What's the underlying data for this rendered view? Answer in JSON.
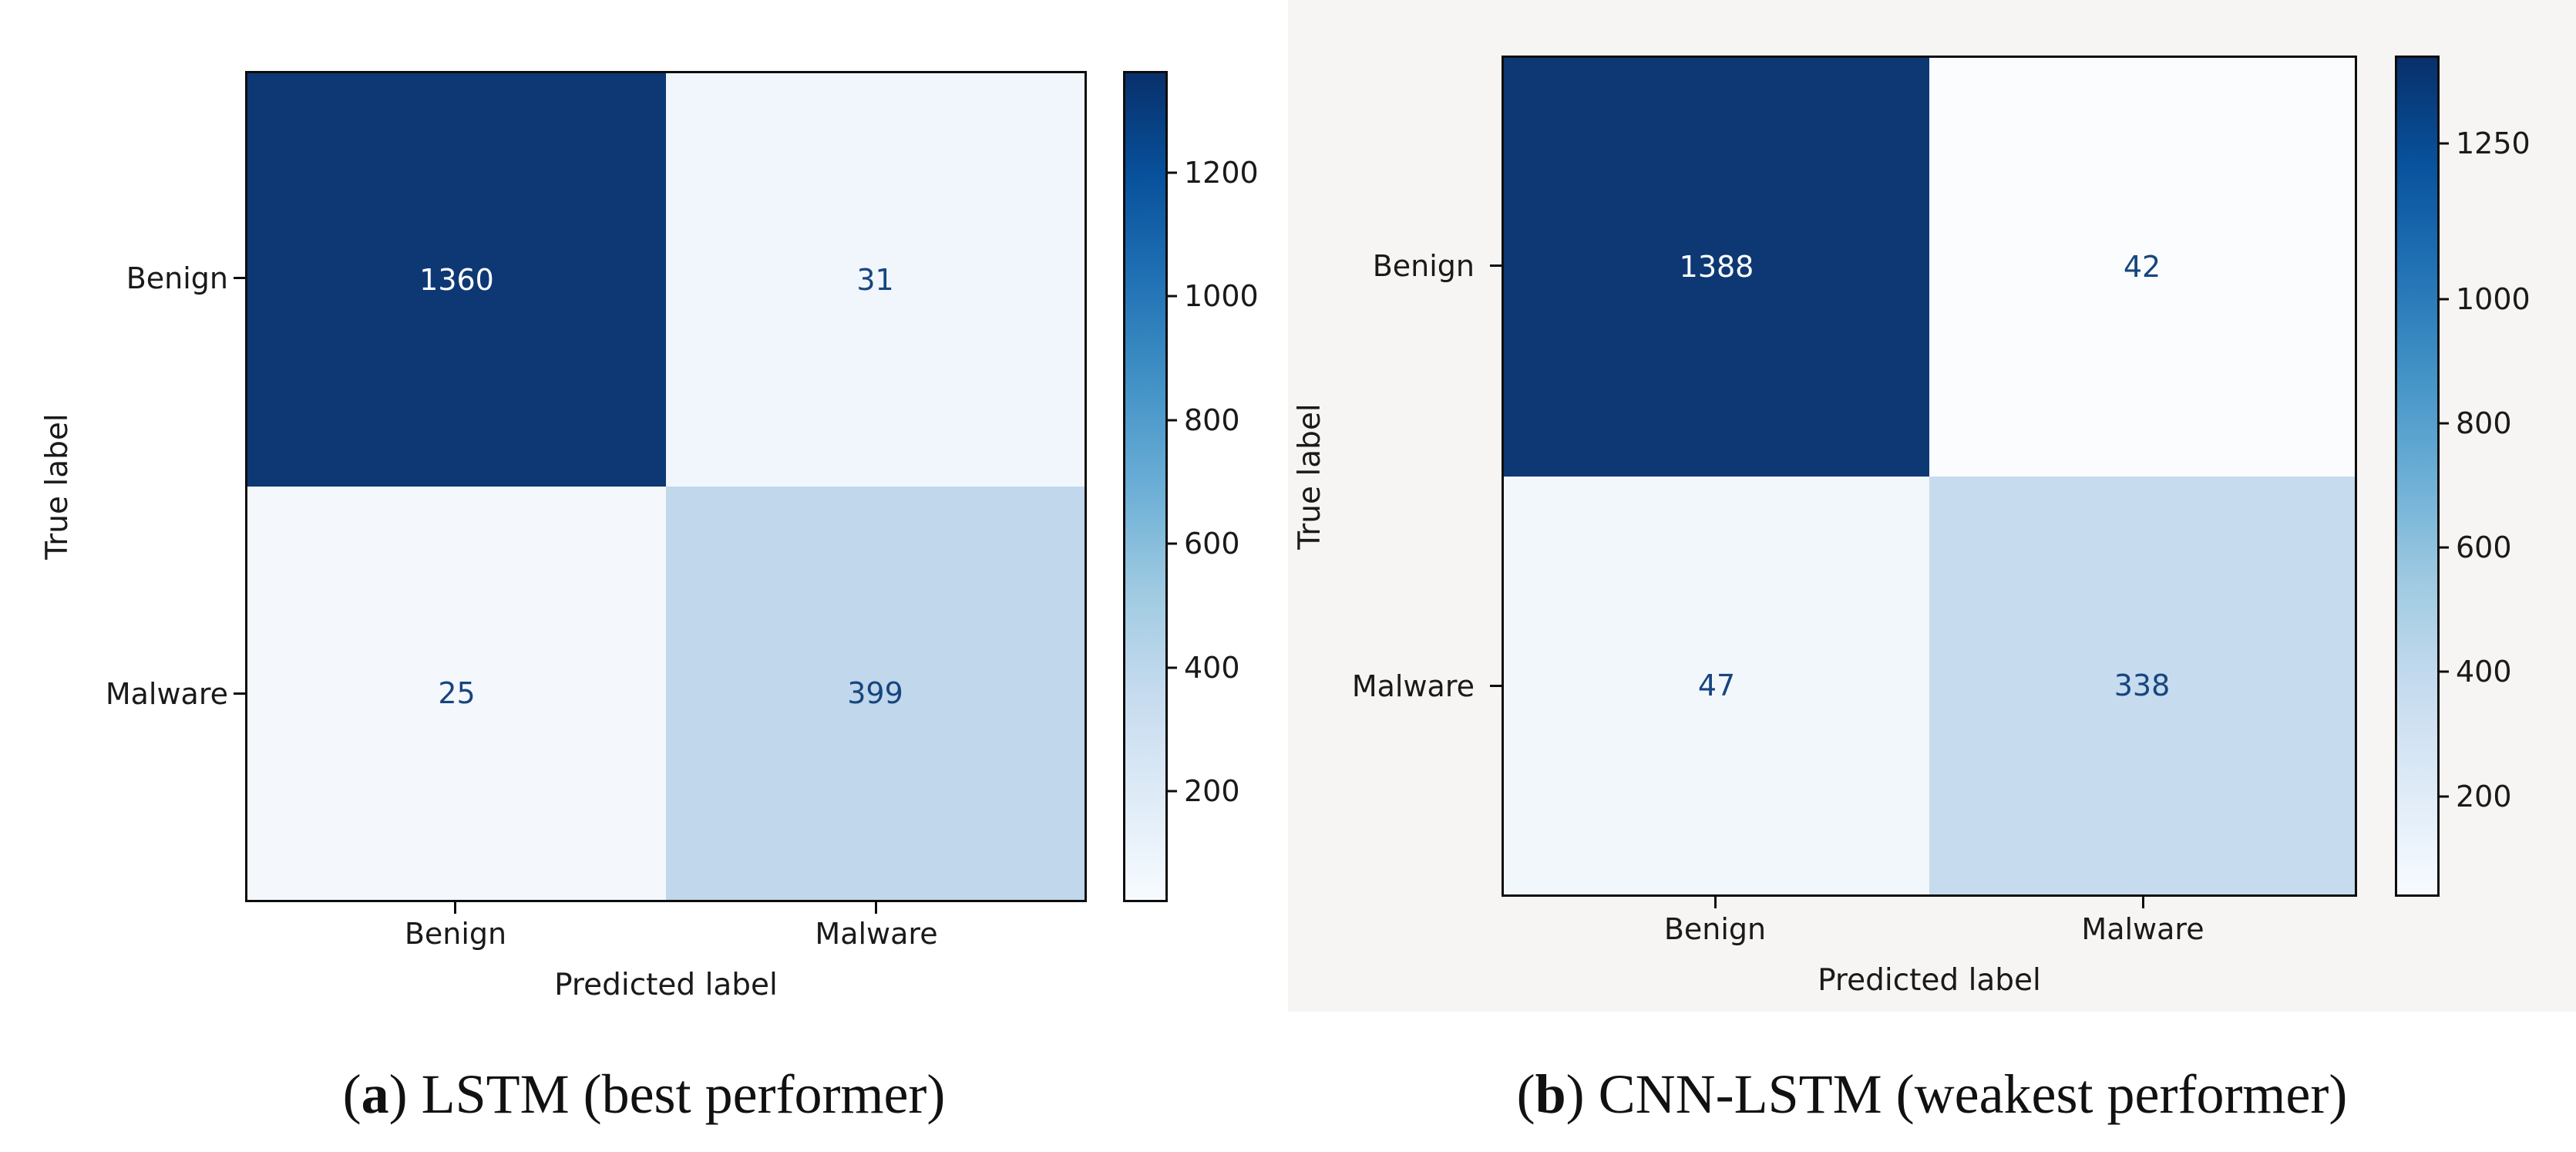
{
  "figure": {
    "panels": [
      {
        "id": "a",
        "y_axis_label": "True label",
        "x_axis_label": "Predicted label",
        "y_tick_labels": [
          "Benign",
          "Malware"
        ],
        "x_tick_labels": [
          "Benign",
          "Malware"
        ],
        "cells": [
          {
            "value": "1360",
            "bg": "#0d3874",
            "fg": "#ffffff"
          },
          {
            "value": "31",
            "bg": "#f1f6fc",
            "fg": "#17467e"
          },
          {
            "value": "25",
            "bg": "#f4f8fd",
            "fg": "#17467e"
          },
          {
            "value": "399",
            "bg": "#c0d7ec",
            "fg": "#17467e"
          }
        ],
        "colorbar": {
          "vmin": 25,
          "vmax": 1360,
          "ticks": [
            1200,
            1000,
            800,
            600,
            400,
            200
          ]
        },
        "caption": {
          "open": "(",
          "letter": "a",
          "rest": ") LSTM (best performer)"
        }
      },
      {
        "id": "b",
        "y_axis_label": "True label",
        "x_axis_label": "Predicted label",
        "y_tick_labels": [
          "Benign",
          "Malware"
        ],
        "x_tick_labels": [
          "Benign",
          "Malware"
        ],
        "cells": [
          {
            "value": "1388",
            "bg": "#0d3874",
            "fg": "#ffffff"
          },
          {
            "value": "42",
            "bg": "#fafcfe",
            "fg": "#17467e"
          },
          {
            "value": "47",
            "bg": "#f2f7fb",
            "fg": "#17467e"
          },
          {
            "value": "338",
            "bg": "#c6dbee",
            "fg": "#17467e"
          }
        ],
        "colorbar": {
          "vmin": 42,
          "vmax": 1388,
          "ticks": [
            1250,
            1000,
            800,
            600,
            400,
            200
          ]
        },
        "caption": {
          "open": "(",
          "letter": "b",
          "rest": ") CNN-LSTM (weakest performer)"
        }
      }
    ]
  },
  "chart_data": [
    {
      "type": "heatmap",
      "title": "(a) LSTM (best performer)",
      "x_categories": [
        "Benign",
        "Malware"
      ],
      "y_categories": [
        "Benign",
        "Malware"
      ],
      "values": [
        [
          1360,
          31
        ],
        [
          25,
          399
        ]
      ],
      "xlabel": "Predicted label",
      "ylabel": "True label",
      "colormap": "Blues",
      "vmin": 25,
      "vmax": 1360,
      "colorbar_ticks": [
        200,
        400,
        600,
        800,
        1000,
        1200
      ],
      "legend_position": "right-colorbar",
      "grid": false
    },
    {
      "type": "heatmap",
      "title": "(b) CNN-LSTM (weakest performer)",
      "x_categories": [
        "Benign",
        "Malware"
      ],
      "y_categories": [
        "Benign",
        "Malware"
      ],
      "values": [
        [
          1388,
          42
        ],
        [
          47,
          338
        ]
      ],
      "xlabel": "Predicted label",
      "ylabel": "True label",
      "colormap": "Blues",
      "vmin": 42,
      "vmax": 1388,
      "colorbar_ticks": [
        200,
        400,
        600,
        800,
        1000,
        1250
      ],
      "legend_position": "right-colorbar",
      "grid": false
    }
  ]
}
